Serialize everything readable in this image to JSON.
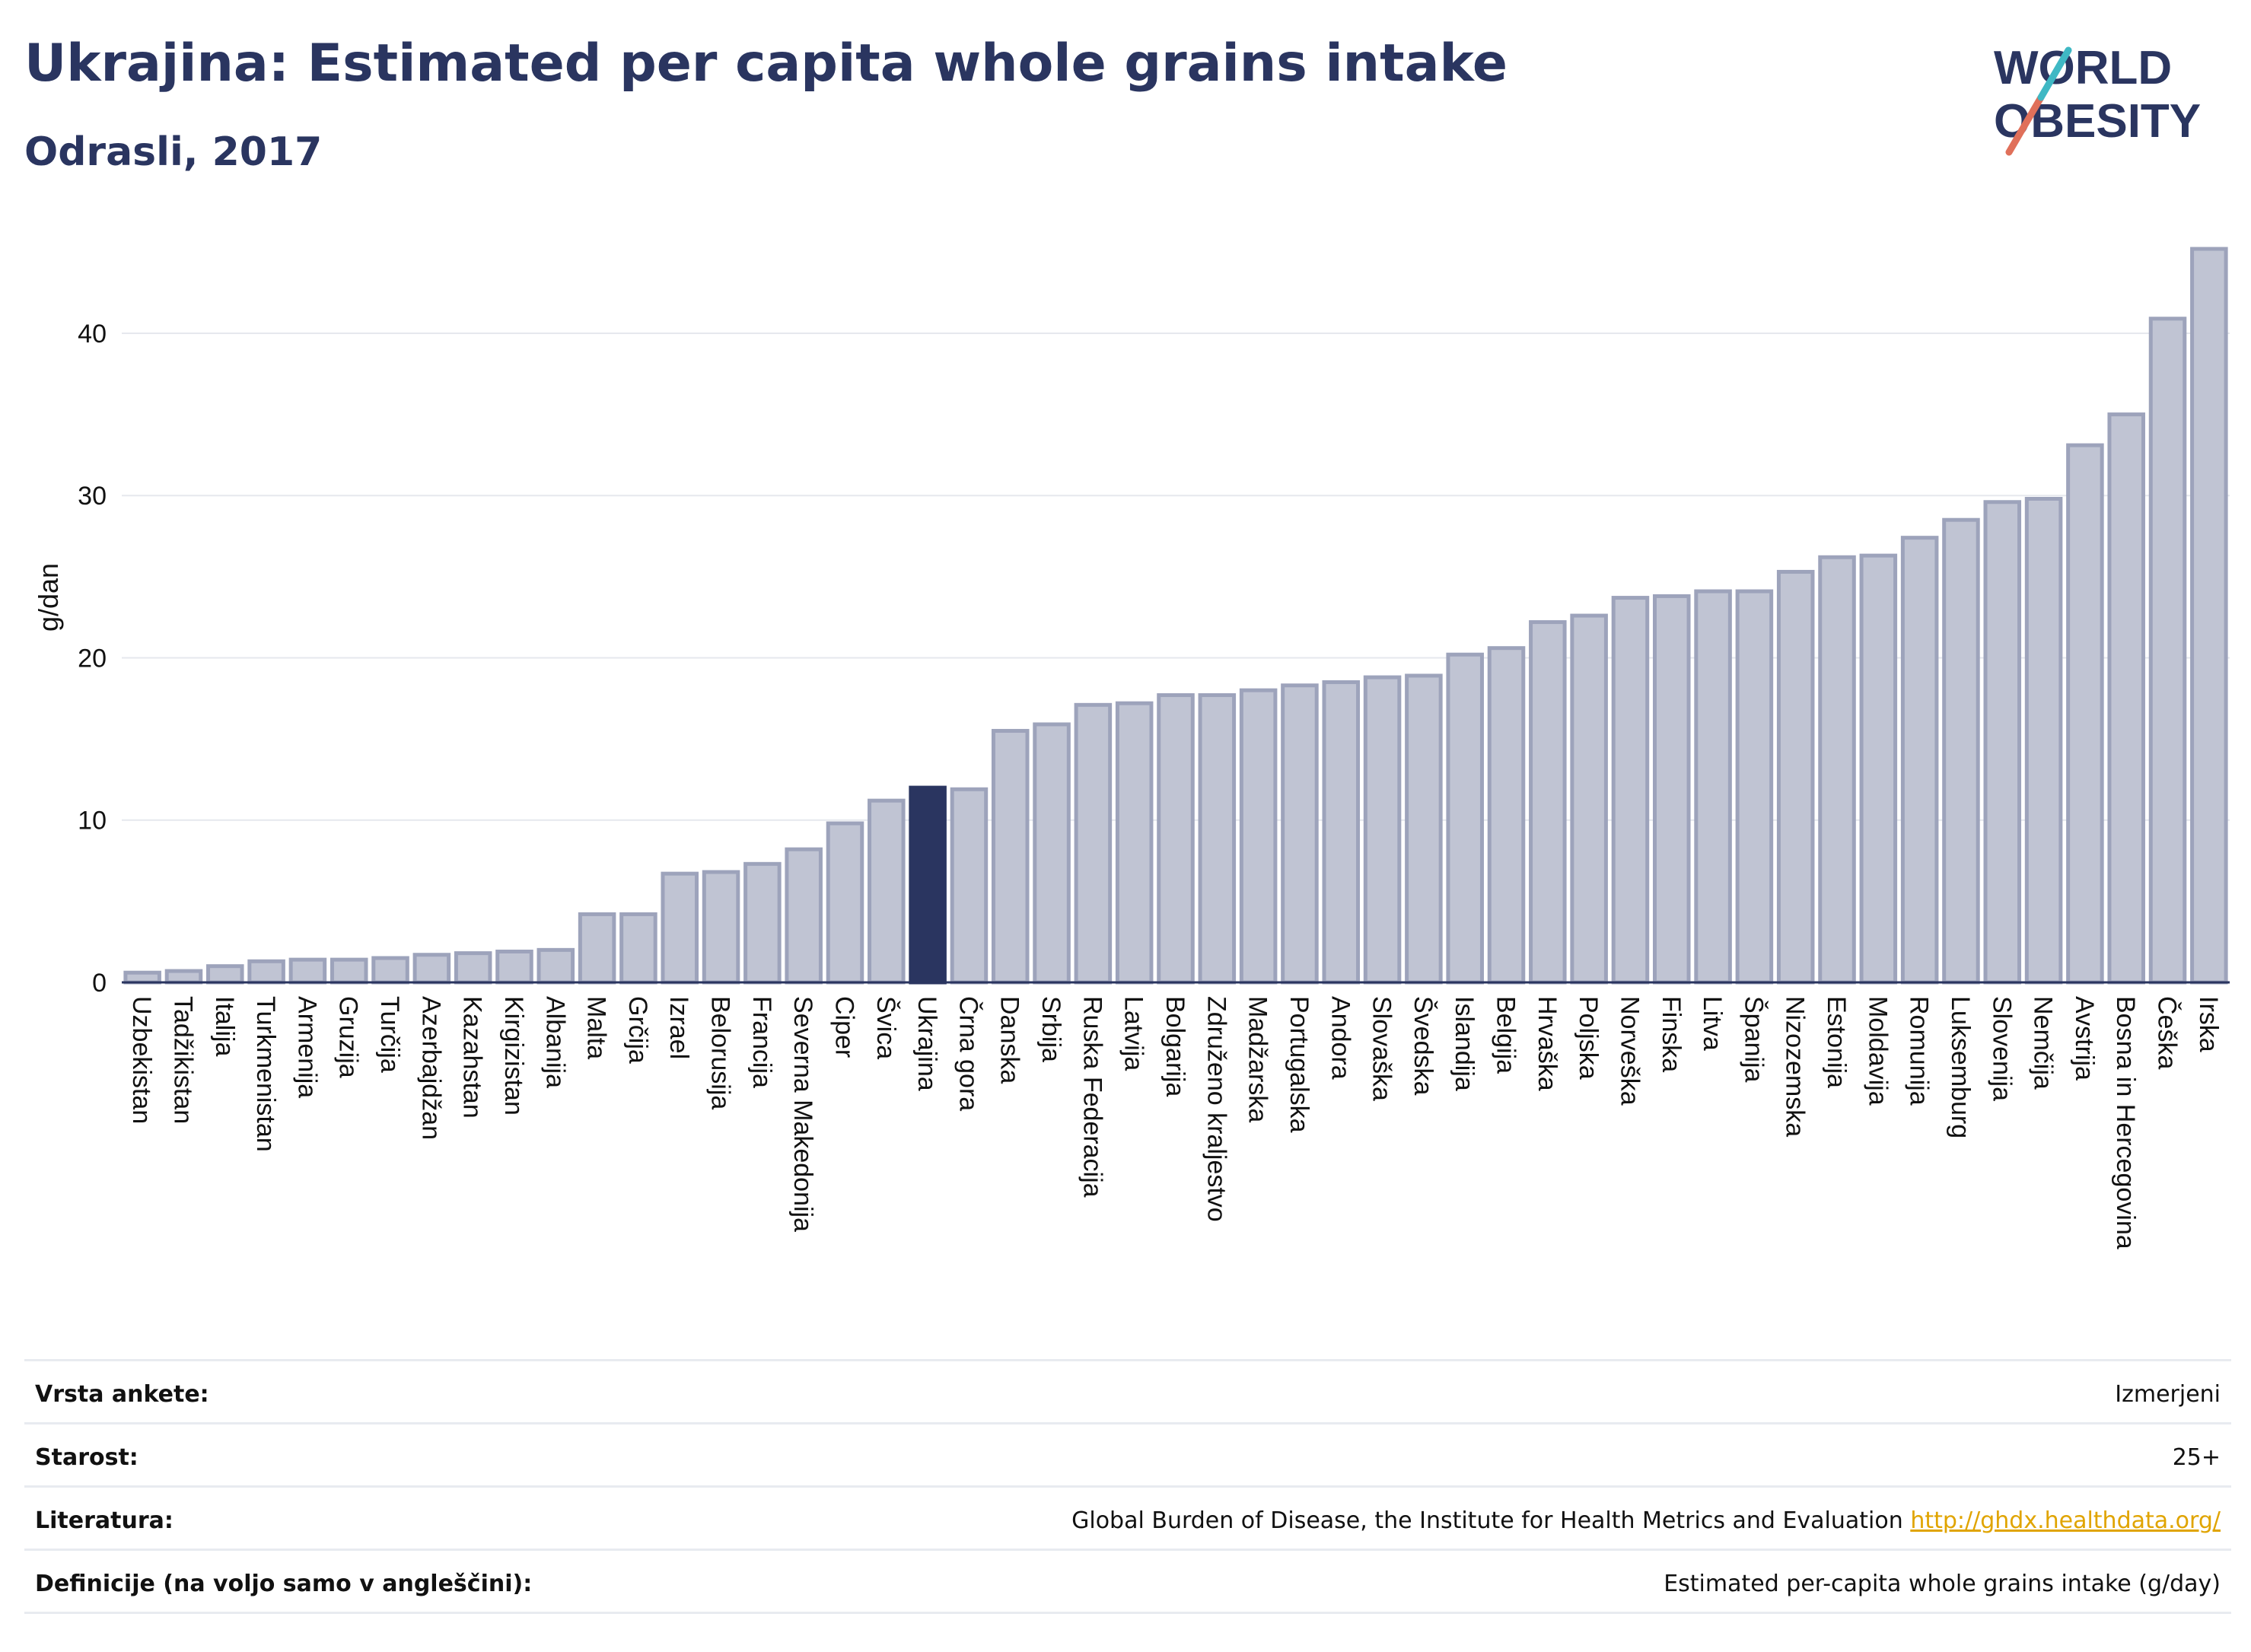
{
  "header": {
    "title": "Ukrajina: Estimated per capita whole grains intake",
    "subtitle": "Odrasli, 2017"
  },
  "logo": {
    "line1": "WORLD",
    "line2": "OBESITY",
    "colors": [
      "#2a3560",
      "#3fb8c4",
      "#e0705a"
    ]
  },
  "colors": {
    "bar": "#c0c4d3",
    "bar_stroke": "#9da3bb",
    "highlight": "#2a3560",
    "grid": "#e6e8ee",
    "text": "#2a3560"
  },
  "chart_data": {
    "type": "bar",
    "ylabel": "g/dan",
    "ylim": [
      0,
      46
    ],
    "yticks": [
      0,
      10,
      20,
      30,
      40
    ],
    "highlight": "Ukrajina",
    "categories": [
      "Uzbekistan",
      "Tadžikistan",
      "Italija",
      "Turkmenistan",
      "Armenija",
      "Gruzija",
      "Turčija",
      "Azerbajdžan",
      "Kazahstan",
      "Kirgizistan",
      "Albanija",
      "Malta",
      "Grčija",
      "Izrael",
      "Belorusija",
      "Francija",
      "Severna Makedonija",
      "Ciper",
      "Švica",
      "Ukrajina",
      "Črna gora",
      "Danska",
      "Srbija",
      "Ruska Federacija",
      "Latvija",
      "Bolgarija",
      "Združeno kraljestvo",
      "Madžarska",
      "Portugalska",
      "Andora",
      "Slovaška",
      "Švedska",
      "Islandija",
      "Belgija",
      "Hrvaška",
      "Poljska",
      "Norveška",
      "Finska",
      "Litva",
      "Španija",
      "Nizozemska",
      "Estonija",
      "Moldavija",
      "Romunija",
      "Luksemburg",
      "Slovenija",
      "Nemčija",
      "Avstrija",
      "Bosna in Hercegovina",
      "Češka",
      "Irska"
    ],
    "values": [
      0.6,
      0.7,
      1.0,
      1.3,
      1.4,
      1.4,
      1.5,
      1.7,
      1.8,
      1.9,
      2.0,
      4.2,
      4.2,
      6.7,
      6.8,
      7.3,
      8.2,
      9.8,
      11.2,
      12.0,
      11.9,
      15.5,
      15.9,
      17.1,
      17.2,
      17.7,
      17.7,
      18.0,
      18.3,
      18.5,
      18.8,
      18.9,
      20.2,
      20.6,
      22.2,
      22.6,
      23.7,
      23.8,
      24.1,
      24.1,
      25.3,
      26.2,
      26.3,
      27.4,
      28.5,
      29.6,
      29.8,
      33.1,
      35.0,
      40.9,
      45.2
    ]
  },
  "meta": {
    "rows": [
      {
        "key": "Vrsta ankete:",
        "value": "Izmerjeni"
      },
      {
        "key": "Starost:",
        "value": "25+"
      },
      {
        "key": "Literatura:",
        "value": "Global Burden of Disease, the Institute for Health Metrics and Evaluation",
        "link": "http://ghdx.healthdata.org/"
      },
      {
        "key": "Definicije (na voljo samo v angleščini):",
        "value": "Estimated per-capita whole grains intake (g/day)"
      }
    ]
  }
}
